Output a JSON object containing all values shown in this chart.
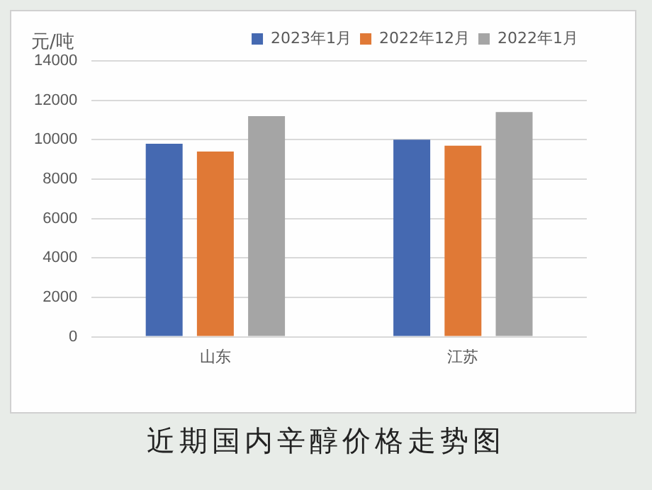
{
  "chart_data": {
    "type": "bar",
    "title": "近期国内辛醇价格走势图",
    "ylabel": "元/吨",
    "categories": [
      "山东",
      "江苏"
    ],
    "series": [
      {
        "name": "2023年1月",
        "color": "#4569b1",
        "values": [
          9800,
          10000
        ]
      },
      {
        "name": "2022年12月",
        "color": "#e07936",
        "values": [
          9400,
          9700
        ]
      },
      {
        "name": "2022年1月",
        "color": "#a5a5a5",
        "values": [
          11200,
          11400
        ]
      }
    ],
    "ylim": [
      0,
      14000
    ],
    "yticks": [
      0,
      2000,
      4000,
      6000,
      8000,
      10000,
      12000,
      14000
    ],
    "grid": "y",
    "legend": "top right"
  }
}
